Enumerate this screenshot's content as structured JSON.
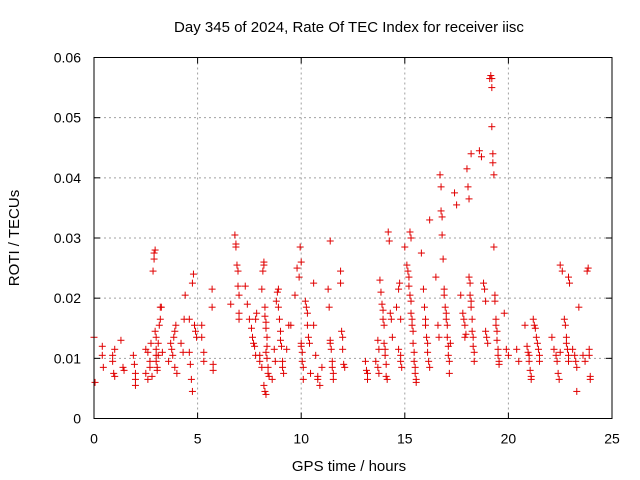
{
  "chart_data": {
    "type": "scatter",
    "title": "Day 345 of 2024, Rate Of TEC Index for receiver iisc",
    "xlabel": "GPS time / hours",
    "ylabel": "ROTI / TECUs",
    "xlim": [
      0,
      25
    ],
    "ylim": [
      0,
      0.06
    ],
    "x_ticks": [
      0,
      5,
      10,
      15,
      20,
      25
    ],
    "y_ticks": [
      0,
      0.01,
      0.02,
      0.03,
      0.04,
      0.05,
      0.06
    ],
    "y_tick_labels": [
      "0",
      "0.01",
      "0.02",
      "0.03",
      "0.04",
      "0.05",
      "0.06"
    ],
    "grid": true,
    "marker": "+",
    "color": "#e00000",
    "points": [
      [
        0.0,
        0.0135
      ],
      [
        0.05,
        0.006
      ],
      [
        0.4,
        0.012
      ],
      [
        0.4,
        0.0105
      ],
      [
        0.45,
        0.0085
      ],
      [
        0.9,
        0.0105
      ],
      [
        0.9,
        0.0095
      ],
      [
        0.95,
        0.0075
      ],
      [
        1.0,
        0.007
      ],
      [
        1.0,
        0.0115
      ],
      [
        1.3,
        0.013
      ],
      [
        1.4,
        0.0085
      ],
      [
        1.45,
        0.008
      ],
      [
        1.9,
        0.0105
      ],
      [
        1.95,
        0.009
      ],
      [
        2.0,
        0.0075
      ],
      [
        2.0,
        0.0065
      ],
      [
        2.0,
        0.0055
      ],
      [
        2.5,
        0.0115
      ],
      [
        2.5,
        0.0075
      ],
      [
        2.6,
        0.0065
      ],
      [
        2.6,
        0.011
      ],
      [
        2.7,
        0.0095
      ],
      [
        2.7,
        0.0085
      ],
      [
        2.75,
        0.0125
      ],
      [
        2.8,
        0.007
      ],
      [
        2.85,
        0.0245
      ],
      [
        2.9,
        0.0265
      ],
      [
        2.9,
        0.0275
      ],
      [
        2.95,
        0.028
      ],
      [
        2.95,
        0.0145
      ],
      [
        3.0,
        0.0135
      ],
      [
        3.0,
        0.0115
      ],
      [
        3.0,
        0.0105
      ],
      [
        3.0,
        0.0095
      ],
      [
        3.05,
        0.0085
      ],
      [
        3.05,
        0.008
      ],
      [
        3.1,
        0.0125
      ],
      [
        3.1,
        0.0105
      ],
      [
        3.15,
        0.0155
      ],
      [
        3.2,
        0.0165
      ],
      [
        3.2,
        0.0185
      ],
      [
        3.25,
        0.0185
      ],
      [
        3.3,
        0.011
      ],
      [
        3.6,
        0.0095
      ],
      [
        3.7,
        0.0125
      ],
      [
        3.75,
        0.0115
      ],
      [
        3.8,
        0.0105
      ],
      [
        3.85,
        0.0135
      ],
      [
        3.9,
        0.0145
      ],
      [
        3.95,
        0.0155
      ],
      [
        3.9,
        0.0085
      ],
      [
        4.0,
        0.0075
      ],
      [
        4.2,
        0.0125
      ],
      [
        4.3,
        0.011
      ],
      [
        4.35,
        0.0165
      ],
      [
        4.4,
        0.0205
      ],
      [
        4.6,
        0.0165
      ],
      [
        4.6,
        0.011
      ],
      [
        4.65,
        0.009
      ],
      [
        4.7,
        0.0065
      ],
      [
        4.75,
        0.0045
      ],
      [
        4.75,
        0.0225
      ],
      [
        4.8,
        0.024
      ],
      [
        4.85,
        0.0155
      ],
      [
        4.9,
        0.0145
      ],
      [
        4.95,
        0.0135
      ],
      [
        5.2,
        0.0155
      ],
      [
        5.2,
        0.0135
      ],
      [
        5.3,
        0.011
      ],
      [
        5.3,
        0.0095
      ],
      [
        5.7,
        0.0215
      ],
      [
        5.7,
        0.0185
      ],
      [
        5.75,
        0.009
      ],
      [
        5.75,
        0.008
      ],
      [
        6.6,
        0.019
      ],
      [
        6.8,
        0.0305
      ],
      [
        6.85,
        0.029
      ],
      [
        6.85,
        0.0285
      ],
      [
        6.9,
        0.0255
      ],
      [
        6.95,
        0.0245
      ],
      [
        6.95,
        0.022
      ],
      [
        7.0,
        0.0205
      ],
      [
        7.0,
        0.0175
      ],
      [
        7.0,
        0.0165
      ],
      [
        7.3,
        0.022
      ],
      [
        7.4,
        0.019
      ],
      [
        7.5,
        0.0165
      ],
      [
        7.6,
        0.015
      ],
      [
        7.65,
        0.0135
      ],
      [
        7.7,
        0.0125
      ],
      [
        7.75,
        0.012
      ],
      [
        7.8,
        0.0105
      ],
      [
        7.8,
        0.0165
      ],
      [
        7.85,
        0.0175
      ],
      [
        8.0,
        0.0105
      ],
      [
        8.0,
        0.0095
      ],
      [
        8.1,
        0.0085
      ],
      [
        8.1,
        0.0215
      ],
      [
        8.15,
        0.0245
      ],
      [
        8.2,
        0.026
      ],
      [
        8.2,
        0.0255
      ],
      [
        8.25,
        0.0185
      ],
      [
        8.25,
        0.017
      ],
      [
        8.3,
        0.016
      ],
      [
        8.3,
        0.015
      ],
      [
        8.35,
        0.0135
      ],
      [
        8.35,
        0.012
      ],
      [
        8.3,
        0.011
      ],
      [
        8.35,
        0.01
      ],
      [
        8.4,
        0.0085
      ],
      [
        8.4,
        0.0075
      ],
      [
        8.45,
        0.007
      ],
      [
        8.2,
        0.0055
      ],
      [
        8.25,
        0.0045
      ],
      [
        8.3,
        0.004
      ],
      [
        8.6,
        0.0065
      ],
      [
        8.7,
        0.0115
      ],
      [
        8.75,
        0.0095
      ],
      [
        8.8,
        0.0195
      ],
      [
        8.85,
        0.021
      ],
      [
        8.9,
        0.0215
      ],
      [
        8.9,
        0.0185
      ],
      [
        8.95,
        0.0165
      ],
      [
        9.0,
        0.0145
      ],
      [
        9.0,
        0.013
      ],
      [
        9.05,
        0.012
      ],
      [
        9.1,
        0.0095
      ],
      [
        9.1,
        0.0085
      ],
      [
        9.15,
        0.0075
      ],
      [
        9.3,
        0.0115
      ],
      [
        9.4,
        0.0155
      ],
      [
        9.5,
        0.0155
      ],
      [
        9.7,
        0.0205
      ],
      [
        9.8,
        0.025
      ],
      [
        9.9,
        0.0235
      ],
      [
        9.95,
        0.0285
      ],
      [
        10.0,
        0.026
      ],
      [
        10.0,
        0.0125
      ],
      [
        10.0,
        0.012
      ],
      [
        10.05,
        0.011
      ],
      [
        10.05,
        0.0095
      ],
      [
        10.1,
        0.0085
      ],
      [
        10.1,
        0.0065
      ],
      [
        10.2,
        0.0195
      ],
      [
        10.25,
        0.0185
      ],
      [
        10.3,
        0.0175
      ],
      [
        10.3,
        0.0155
      ],
      [
        10.35,
        0.0135
      ],
      [
        10.4,
        0.0125
      ],
      [
        10.45,
        0.0075
      ],
      [
        10.6,
        0.0155
      ],
      [
        10.6,
        0.0225
      ],
      [
        10.7,
        0.0105
      ],
      [
        10.8,
        0.007
      ],
      [
        10.8,
        0.0065
      ],
      [
        10.9,
        0.0055
      ],
      [
        11.0,
        0.0085
      ],
      [
        11.3,
        0.0215
      ],
      [
        11.35,
        0.0185
      ],
      [
        11.4,
        0.013
      ],
      [
        11.4,
        0.0125
      ],
      [
        11.45,
        0.0115
      ],
      [
        11.5,
        0.0095
      ],
      [
        11.5,
        0.0085
      ],
      [
        11.55,
        0.0075
      ],
      [
        11.55,
        0.0065
      ],
      [
        11.9,
        0.0245
      ],
      [
        11.9,
        0.0225
      ],
      [
        11.95,
        0.0145
      ],
      [
        12.0,
        0.0135
      ],
      [
        12.0,
        0.0115
      ],
      [
        12.05,
        0.009
      ],
      [
        12.1,
        0.0085
      ],
      [
        11.4,
        0.0295
      ],
      [
        13.1,
        0.0095
      ],
      [
        13.15,
        0.008
      ],
      [
        13.2,
        0.0075
      ],
      [
        13.2,
        0.0065
      ],
      [
        13.6,
        0.0095
      ],
      [
        13.7,
        0.0085
      ],
      [
        13.75,
        0.0075
      ],
      [
        13.7,
        0.013
      ],
      [
        13.75,
        0.0115
      ],
      [
        13.8,
        0.023
      ],
      [
        13.85,
        0.021
      ],
      [
        13.9,
        0.019
      ],
      [
        13.95,
        0.018
      ],
      [
        13.95,
        0.0165
      ],
      [
        14.0,
        0.0155
      ],
      [
        14.0,
        0.0125
      ],
      [
        14.05,
        0.0115
      ],
      [
        14.05,
        0.0105
      ],
      [
        14.1,
        0.009
      ],
      [
        14.1,
        0.007
      ],
      [
        14.15,
        0.0065
      ],
      [
        14.2,
        0.031
      ],
      [
        14.25,
        0.0295
      ],
      [
        14.3,
        0.0175
      ],
      [
        14.35,
        0.0165
      ],
      [
        14.4,
        0.0135
      ],
      [
        14.6,
        0.0185
      ],
      [
        14.7,
        0.0115
      ],
      [
        14.8,
        0.0105
      ],
      [
        14.8,
        0.0095
      ],
      [
        14.85,
        0.0085
      ],
      [
        14.7,
        0.0215
      ],
      [
        14.75,
        0.0225
      ],
      [
        14.8,
        0.0165
      ],
      [
        15.0,
        0.0285
      ],
      [
        15.1,
        0.0255
      ],
      [
        15.15,
        0.0245
      ],
      [
        15.2,
        0.0235
      ],
      [
        15.2,
        0.022
      ],
      [
        15.25,
        0.0205
      ],
      [
        15.3,
        0.0195
      ],
      [
        15.3,
        0.0175
      ],
      [
        15.35,
        0.0165
      ],
      [
        15.35,
        0.0155
      ],
      [
        15.4,
        0.0145
      ],
      [
        15.4,
        0.0125
      ],
      [
        15.45,
        0.011
      ],
      [
        15.45,
        0.0095
      ],
      [
        15.5,
        0.0085
      ],
      [
        15.5,
        0.0075
      ],
      [
        15.55,
        0.0065
      ],
      [
        15.55,
        0.006
      ],
      [
        15.25,
        0.031
      ],
      [
        15.3,
        0.03
      ],
      [
        15.8,
        0.0275
      ],
      [
        15.9,
        0.0215
      ],
      [
        15.95,
        0.0185
      ],
      [
        16.0,
        0.0165
      ],
      [
        16.0,
        0.0155
      ],
      [
        16.05,
        0.0135
      ],
      [
        16.1,
        0.0125
      ],
      [
        16.1,
        0.011
      ],
      [
        16.15,
        0.0095
      ],
      [
        16.2,
        0.0085
      ],
      [
        16.2,
        0.033
      ],
      [
        16.5,
        0.0235
      ],
      [
        16.6,
        0.0155
      ],
      [
        16.65,
        0.0135
      ],
      [
        16.7,
        0.0405
      ],
      [
        16.75,
        0.0385
      ],
      [
        16.75,
        0.0345
      ],
      [
        16.8,
        0.0335
      ],
      [
        16.8,
        0.0305
      ],
      [
        16.85,
        0.0265
      ],
      [
        16.9,
        0.0215
      ],
      [
        16.9,
        0.0205
      ],
      [
        16.95,
        0.0185
      ],
      [
        17.0,
        0.0175
      ],
      [
        17.0,
        0.0165
      ],
      [
        17.05,
        0.0155
      ],
      [
        17.05,
        0.0135
      ],
      [
        17.1,
        0.012
      ],
      [
        17.1,
        0.0105
      ],
      [
        17.15,
        0.0095
      ],
      [
        17.15,
        0.0075
      ],
      [
        17.2,
        0.0125
      ],
      [
        17.4,
        0.0375
      ],
      [
        17.5,
        0.0355
      ],
      [
        17.7,
        0.0205
      ],
      [
        17.8,
        0.0175
      ],
      [
        17.85,
        0.0165
      ],
      [
        17.9,
        0.0155
      ],
      [
        17.95,
        0.014
      ],
      [
        17.9,
        0.0135
      ],
      [
        18.0,
        0.0415
      ],
      [
        18.05,
        0.0385
      ],
      [
        18.1,
        0.0365
      ],
      [
        18.1,
        0.0235
      ],
      [
        18.15,
        0.0225
      ],
      [
        18.15,
        0.0205
      ],
      [
        18.2,
        0.0195
      ],
      [
        18.2,
        0.0185
      ],
      [
        18.25,
        0.0165
      ],
      [
        18.25,
        0.0145
      ],
      [
        18.3,
        0.0135
      ],
      [
        18.3,
        0.012
      ],
      [
        18.35,
        0.011
      ],
      [
        18.35,
        0.0095
      ],
      [
        18.2,
        0.044
      ],
      [
        18.6,
        0.0445
      ],
      [
        18.7,
        0.0435
      ],
      [
        18.8,
        0.0225
      ],
      [
        18.85,
        0.0215
      ],
      [
        18.9,
        0.0195
      ],
      [
        18.9,
        0.0145
      ],
      [
        18.95,
        0.0135
      ],
      [
        19.0,
        0.0125
      ],
      [
        19.1,
        0.0565
      ],
      [
        19.15,
        0.057
      ],
      [
        19.2,
        0.0565
      ],
      [
        19.2,
        0.055
      ],
      [
        19.2,
        0.0485
      ],
      [
        19.25,
        0.044
      ],
      [
        19.25,
        0.0425
      ],
      [
        19.3,
        0.0405
      ],
      [
        19.3,
        0.0285
      ],
      [
        19.35,
        0.0205
      ],
      [
        19.35,
        0.0195
      ],
      [
        19.4,
        0.0165
      ],
      [
        19.4,
        0.0155
      ],
      [
        19.45,
        0.0145
      ],
      [
        19.45,
        0.013
      ],
      [
        19.5,
        0.0115
      ],
      [
        19.5,
        0.0105
      ],
      [
        19.55,
        0.0095
      ],
      [
        19.55,
        0.009
      ],
      [
        19.8,
        0.0175
      ],
      [
        19.9,
        0.0115
      ],
      [
        20.0,
        0.0105
      ],
      [
        20.4,
        0.0115
      ],
      [
        20.5,
        0.0095
      ],
      [
        20.8,
        0.0155
      ],
      [
        20.9,
        0.012
      ],
      [
        20.95,
        0.011
      ],
      [
        21.0,
        0.0105
      ],
      [
        21.0,
        0.0095
      ],
      [
        21.05,
        0.008
      ],
      [
        21.1,
        0.007
      ],
      [
        21.1,
        0.0065
      ],
      [
        21.2,
        0.0165
      ],
      [
        21.25,
        0.0155
      ],
      [
        21.3,
        0.015
      ],
      [
        21.35,
        0.0135
      ],
      [
        21.4,
        0.0125
      ],
      [
        21.45,
        0.0115
      ],
      [
        21.5,
        0.0105
      ],
      [
        21.5,
        0.0095
      ],
      [
        22.1,
        0.0135
      ],
      [
        22.2,
        0.0115
      ],
      [
        22.3,
        0.0105
      ],
      [
        22.35,
        0.0095
      ],
      [
        22.4,
        0.0075
      ],
      [
        22.45,
        0.0065
      ],
      [
        22.5,
        0.011
      ],
      [
        22.5,
        0.0255
      ],
      [
        22.6,
        0.0245
      ],
      [
        22.7,
        0.0165
      ],
      [
        22.75,
        0.0155
      ],
      [
        22.8,
        0.0135
      ],
      [
        22.8,
        0.0125
      ],
      [
        22.85,
        0.0115
      ],
      [
        22.9,
        0.0105
      ],
      [
        22.9,
        0.0095
      ],
      [
        23.1,
        0.0115
      ],
      [
        23.2,
        0.0105
      ],
      [
        23.25,
        0.0095
      ],
      [
        23.3,
        0.0085
      ],
      [
        23.3,
        0.0045
      ],
      [
        23.4,
        0.0185
      ],
      [
        23.6,
        0.0105
      ],
      [
        23.7,
        0.0095
      ],
      [
        23.8,
        0.0245
      ],
      [
        23.85,
        0.025
      ],
      [
        23.9,
        0.0115
      ],
      [
        23.9,
        0.0105
      ],
      [
        23.95,
        0.007
      ],
      [
        23.95,
        0.0065
      ],
      [
        22.9,
        0.0235
      ],
      [
        22.95,
        0.0225
      ]
    ]
  }
}
